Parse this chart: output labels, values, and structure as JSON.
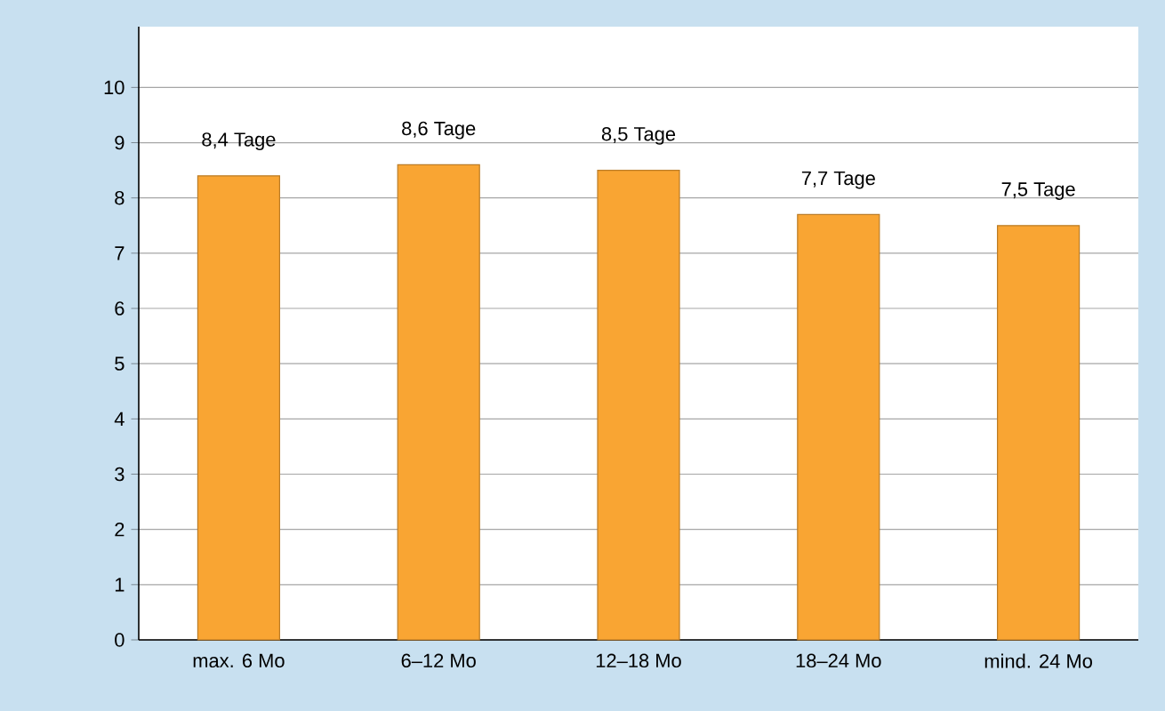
{
  "chart_data": {
    "type": "bar",
    "categories": [
      "max. 6 Mo",
      "6–12 Mo",
      "12–18 Mo",
      "18–24 Mo",
      "mind. 24 Mo"
    ],
    "values": [
      8.4,
      8.6,
      8.5,
      7.7,
      7.5
    ],
    "value_labels": [
      "8,4 Tage",
      "8,6 Tage",
      "8,5 Tage",
      "7,7 Tage",
      "7,5 Tage"
    ],
    "color": "#f9a533",
    "ylim": [
      0,
      11.1
    ],
    "yticks": [
      0,
      1,
      2,
      3,
      4,
      5,
      6,
      7,
      8,
      9,
      10
    ],
    "grid": "y"
  }
}
